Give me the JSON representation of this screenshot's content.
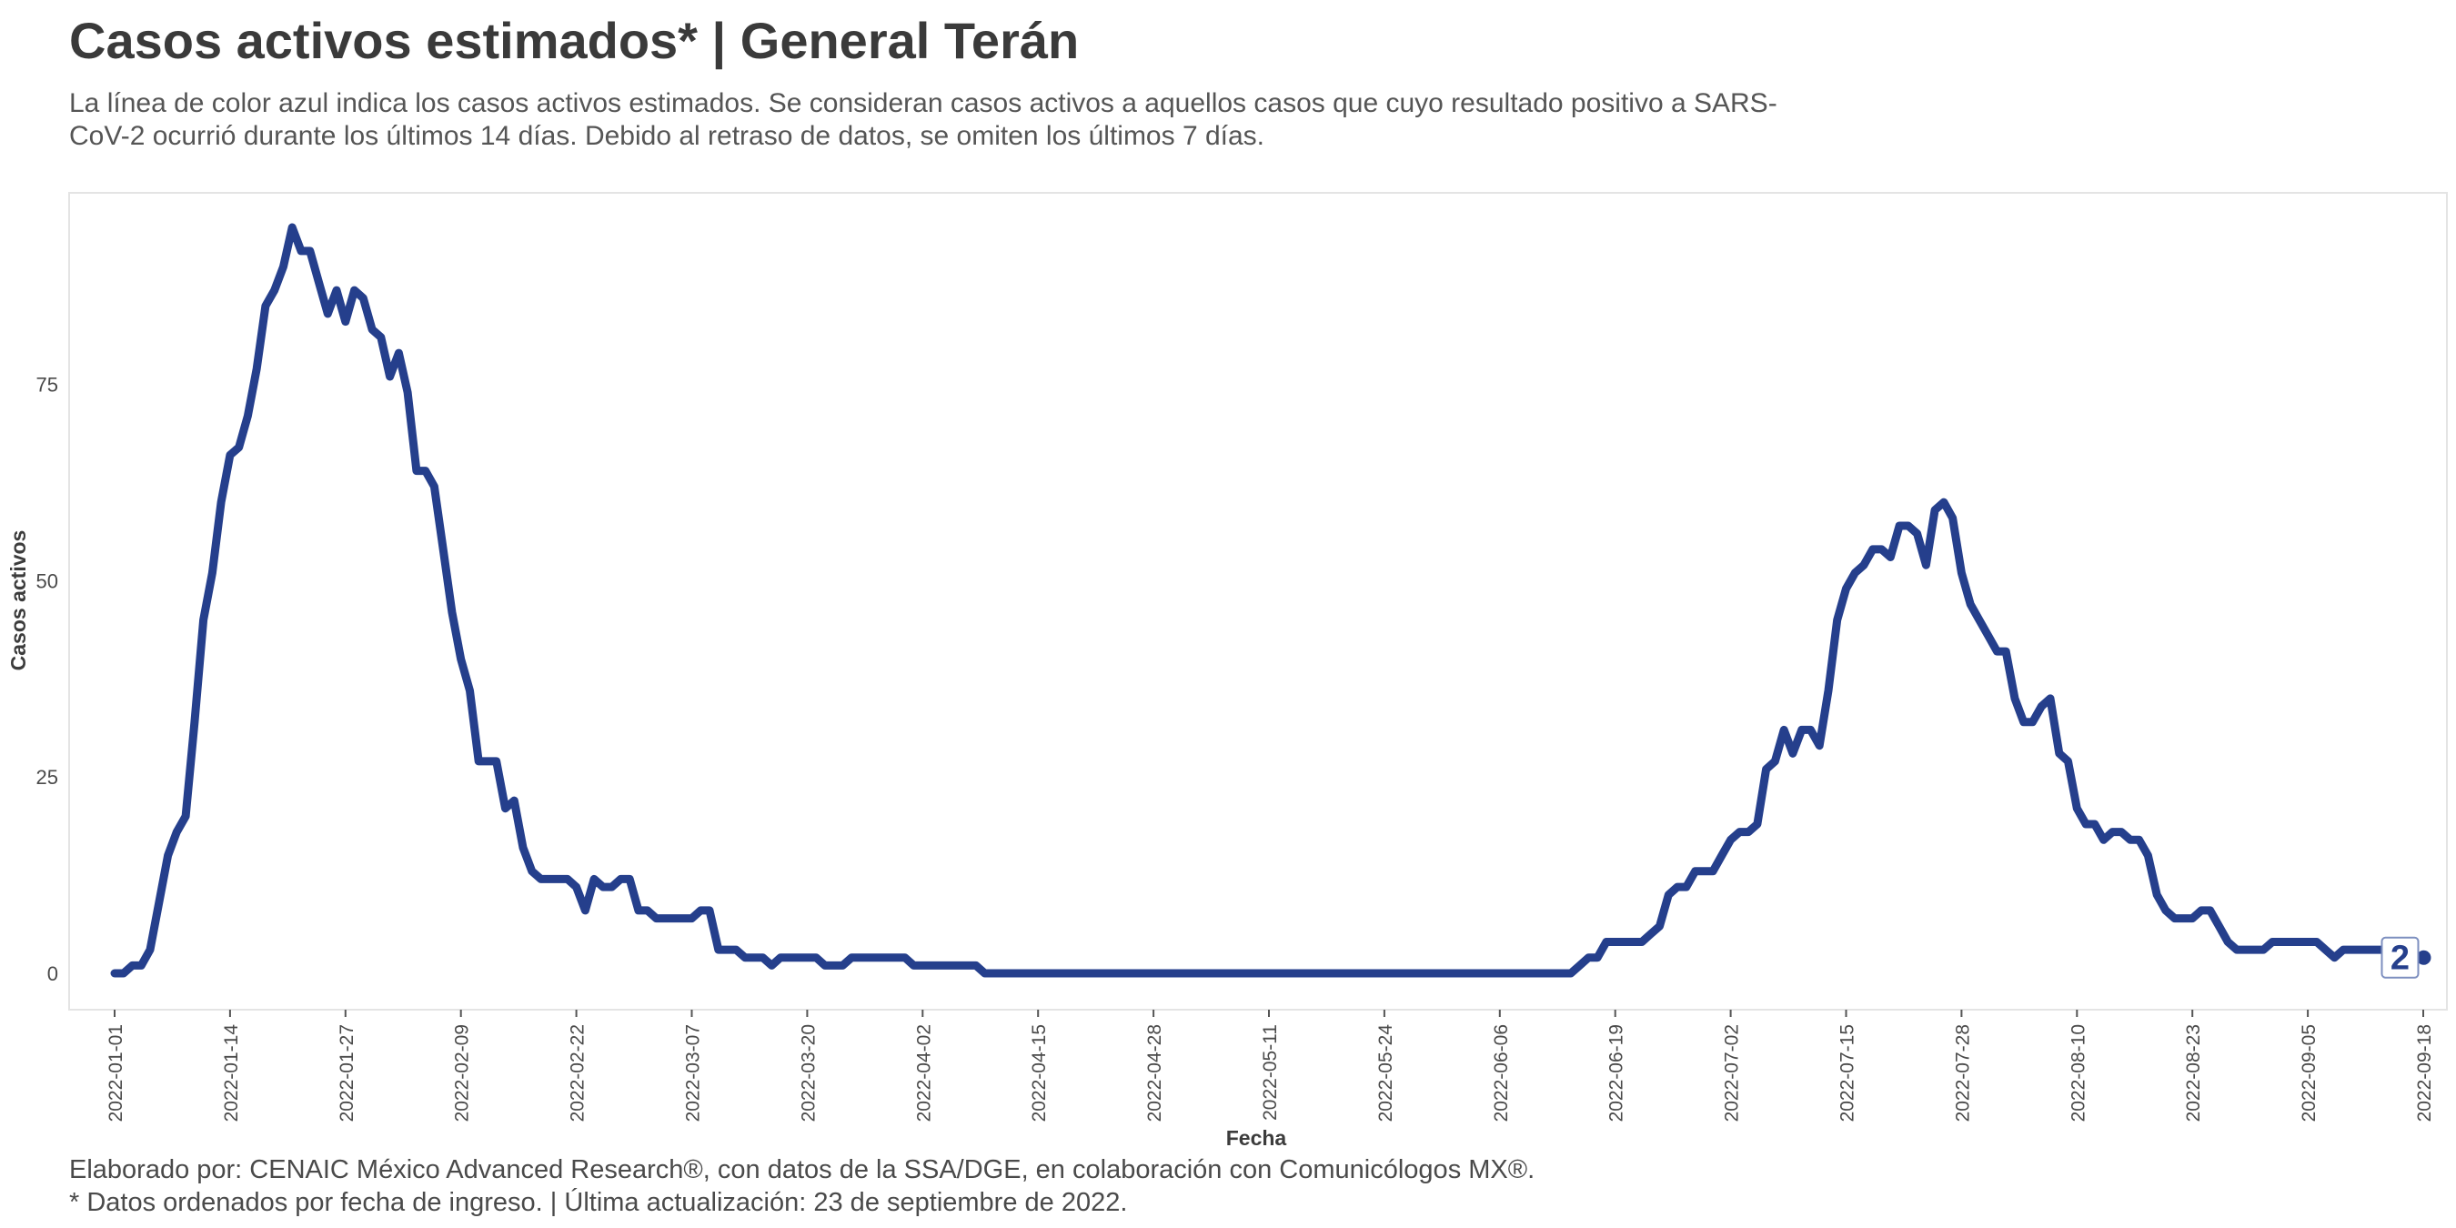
{
  "title": "Casos activos estimados* | General Terán",
  "subtitle": "La línea de color azul indica los casos activos estimados. Se consideran casos activos a aquellos casos que cuyo resultado positivo a SARS-CoV-2 ocurrió durante los últimos 14 días. Debido al retraso de datos, se omiten los últimos 7 días.",
  "caption_line1": "Elaborado por: CENAIC México Advanced Research®, con datos de la SSA/DGE, en colaboración con Comunicólogos MX®.",
  "caption_line2": "* Datos ordenados por fecha de ingreso. | Última actualización: 23 de septiembre de 2022.",
  "chart_data": {
    "type": "line",
    "xlabel": "Fecha",
    "ylabel": "Casos activos",
    "x_range": [
      "2022-01-01",
      "2022-09-18"
    ],
    "ylim": [
      0,
      95
    ],
    "y_ticks": [
      0,
      25,
      50,
      75
    ],
    "x_ticks": [
      "2022-01-01",
      "2022-01-14",
      "2022-01-27",
      "2022-02-09",
      "2022-02-22",
      "2022-03-07",
      "2022-03-20",
      "2022-04-02",
      "2022-04-15",
      "2022-04-28",
      "2022-05-11",
      "2022-05-24",
      "2022-06-06",
      "2022-06-19",
      "2022-07-02",
      "2022-07-15",
      "2022-07-28",
      "2022-08-10",
      "2022-08-23",
      "2022-09-05",
      "2022-09-18"
    ],
    "grid": false,
    "line_color": "#253f8c",
    "end_label": "2",
    "series": [
      {
        "points": [
          [
            "2022-01-01",
            0
          ],
          [
            "2022-01-02",
            0
          ],
          [
            "2022-01-03",
            1
          ],
          [
            "2022-01-04",
            1
          ],
          [
            "2022-01-05",
            3
          ],
          [
            "2022-01-06",
            9
          ],
          [
            "2022-01-07",
            15
          ],
          [
            "2022-01-08",
            18
          ],
          [
            "2022-01-09",
            20
          ],
          [
            "2022-01-10",
            32
          ],
          [
            "2022-01-11",
            45
          ],
          [
            "2022-01-12",
            51
          ],
          [
            "2022-01-13",
            60
          ],
          [
            "2022-01-14",
            66
          ],
          [
            "2022-01-15",
            67
          ],
          [
            "2022-01-16",
            71
          ],
          [
            "2022-01-17",
            77
          ],
          [
            "2022-01-18",
            85
          ],
          [
            "2022-01-19",
            87
          ],
          [
            "2022-01-20",
            90
          ],
          [
            "2022-01-21",
            95
          ],
          [
            "2022-01-22",
            92
          ],
          [
            "2022-01-23",
            92
          ],
          [
            "2022-01-24",
            88
          ],
          [
            "2022-01-25",
            84
          ],
          [
            "2022-01-26",
            87
          ],
          [
            "2022-01-27",
            83
          ],
          [
            "2022-01-28",
            87
          ],
          [
            "2022-01-29",
            86
          ],
          [
            "2022-01-30",
            82
          ],
          [
            "2022-01-31",
            81
          ],
          [
            "2022-02-01",
            76
          ],
          [
            "2022-02-02",
            79
          ],
          [
            "2022-02-03",
            74
          ],
          [
            "2022-02-04",
            64
          ],
          [
            "2022-02-05",
            64
          ],
          [
            "2022-02-06",
            62
          ],
          [
            "2022-02-07",
            54
          ],
          [
            "2022-02-08",
            46
          ],
          [
            "2022-02-09",
            40
          ],
          [
            "2022-02-10",
            36
          ],
          [
            "2022-02-11",
            27
          ],
          [
            "2022-02-12",
            27
          ],
          [
            "2022-02-13",
            27
          ],
          [
            "2022-02-14",
            21
          ],
          [
            "2022-02-15",
            22
          ],
          [
            "2022-02-16",
            16
          ],
          [
            "2022-02-17",
            13
          ],
          [
            "2022-02-18",
            12
          ],
          [
            "2022-02-19",
            12
          ],
          [
            "2022-02-20",
            12
          ],
          [
            "2022-02-21",
            12
          ],
          [
            "2022-02-22",
            11
          ],
          [
            "2022-02-23",
            8
          ],
          [
            "2022-02-24",
            12
          ],
          [
            "2022-02-25",
            11
          ],
          [
            "2022-02-26",
            11
          ],
          [
            "2022-02-27",
            12
          ],
          [
            "2022-02-28",
            12
          ],
          [
            "2022-03-01",
            8
          ],
          [
            "2022-03-02",
            8
          ],
          [
            "2022-03-03",
            7
          ],
          [
            "2022-03-04",
            7
          ],
          [
            "2022-03-05",
            7
          ],
          [
            "2022-03-06",
            7
          ],
          [
            "2022-03-07",
            7
          ],
          [
            "2022-03-08",
            8
          ],
          [
            "2022-03-09",
            8
          ],
          [
            "2022-03-10",
            3
          ],
          [
            "2022-03-11",
            3
          ],
          [
            "2022-03-12",
            3
          ],
          [
            "2022-03-13",
            2
          ],
          [
            "2022-03-14",
            2
          ],
          [
            "2022-03-15",
            2
          ],
          [
            "2022-03-16",
            1
          ],
          [
            "2022-03-17",
            2
          ],
          [
            "2022-03-18",
            2
          ],
          [
            "2022-03-19",
            2
          ],
          [
            "2022-03-20",
            2
          ],
          [
            "2022-03-21",
            2
          ],
          [
            "2022-03-22",
            1
          ],
          [
            "2022-03-23",
            1
          ],
          [
            "2022-03-24",
            1
          ],
          [
            "2022-03-25",
            2
          ],
          [
            "2022-03-26",
            2
          ],
          [
            "2022-03-27",
            2
          ],
          [
            "2022-03-28",
            2
          ],
          [
            "2022-03-29",
            2
          ],
          [
            "2022-03-30",
            2
          ],
          [
            "2022-03-31",
            2
          ],
          [
            "2022-04-01",
            1
          ],
          [
            "2022-04-02",
            1
          ],
          [
            "2022-04-05",
            1
          ],
          [
            "2022-04-08",
            1
          ],
          [
            "2022-04-09",
            0
          ],
          [
            "2022-04-15",
            0
          ],
          [
            "2022-05-01",
            0
          ],
          [
            "2022-05-15",
            0
          ],
          [
            "2022-06-01",
            0
          ],
          [
            "2022-06-13",
            0
          ],
          [
            "2022-06-14",
            0
          ],
          [
            "2022-06-15",
            1
          ],
          [
            "2022-06-16",
            2
          ],
          [
            "2022-06-17",
            2
          ],
          [
            "2022-06-18",
            4
          ],
          [
            "2022-06-19",
            4
          ],
          [
            "2022-06-20",
            4
          ],
          [
            "2022-06-21",
            4
          ],
          [
            "2022-06-22",
            4
          ],
          [
            "2022-06-23",
            5
          ],
          [
            "2022-06-24",
            6
          ],
          [
            "2022-06-25",
            10
          ],
          [
            "2022-06-26",
            11
          ],
          [
            "2022-06-27",
            11
          ],
          [
            "2022-06-28",
            13
          ],
          [
            "2022-06-29",
            13
          ],
          [
            "2022-06-30",
            13
          ],
          [
            "2022-07-01",
            15
          ],
          [
            "2022-07-02",
            17
          ],
          [
            "2022-07-03",
            18
          ],
          [
            "2022-07-04",
            18
          ],
          [
            "2022-07-05",
            19
          ],
          [
            "2022-07-06",
            26
          ],
          [
            "2022-07-07",
            27
          ],
          [
            "2022-07-08",
            31
          ],
          [
            "2022-07-09",
            28
          ],
          [
            "2022-07-10",
            31
          ],
          [
            "2022-07-11",
            31
          ],
          [
            "2022-07-12",
            29
          ],
          [
            "2022-07-13",
            36
          ],
          [
            "2022-07-14",
            45
          ],
          [
            "2022-07-15",
            49
          ],
          [
            "2022-07-16",
            51
          ],
          [
            "2022-07-17",
            52
          ],
          [
            "2022-07-18",
            54
          ],
          [
            "2022-07-19",
            54
          ],
          [
            "2022-07-20",
            53
          ],
          [
            "2022-07-21",
            57
          ],
          [
            "2022-07-22",
            57
          ],
          [
            "2022-07-23",
            56
          ],
          [
            "2022-07-24",
            52
          ],
          [
            "2022-07-25",
            59
          ],
          [
            "2022-07-26",
            60
          ],
          [
            "2022-07-27",
            58
          ],
          [
            "2022-07-28",
            51
          ],
          [
            "2022-07-29",
            47
          ],
          [
            "2022-07-30",
            45
          ],
          [
            "2022-07-31",
            43
          ],
          [
            "2022-08-01",
            41
          ],
          [
            "2022-08-02",
            41
          ],
          [
            "2022-08-03",
            35
          ],
          [
            "2022-08-04",
            32
          ],
          [
            "2022-08-05",
            32
          ],
          [
            "2022-08-06",
            34
          ],
          [
            "2022-08-07",
            35
          ],
          [
            "2022-08-08",
            28
          ],
          [
            "2022-08-09",
            27
          ],
          [
            "2022-08-10",
            21
          ],
          [
            "2022-08-11",
            19
          ],
          [
            "2022-08-12",
            19
          ],
          [
            "2022-08-13",
            17
          ],
          [
            "2022-08-14",
            18
          ],
          [
            "2022-08-15",
            18
          ],
          [
            "2022-08-16",
            17
          ],
          [
            "2022-08-17",
            17
          ],
          [
            "2022-08-18",
            15
          ],
          [
            "2022-08-19",
            10
          ],
          [
            "2022-08-20",
            8
          ],
          [
            "2022-08-21",
            7
          ],
          [
            "2022-08-22",
            7
          ],
          [
            "2022-08-23",
            7
          ],
          [
            "2022-08-24",
            8
          ],
          [
            "2022-08-25",
            8
          ],
          [
            "2022-08-26",
            6
          ],
          [
            "2022-08-27",
            4
          ],
          [
            "2022-08-28",
            3
          ],
          [
            "2022-08-29",
            3
          ],
          [
            "2022-08-30",
            3
          ],
          [
            "2022-08-31",
            3
          ],
          [
            "2022-09-01",
            4
          ],
          [
            "2022-09-02",
            4
          ],
          [
            "2022-09-03",
            4
          ],
          [
            "2022-09-04",
            4
          ],
          [
            "2022-09-05",
            4
          ],
          [
            "2022-09-06",
            4
          ],
          [
            "2022-09-07",
            3
          ],
          [
            "2022-09-08",
            2
          ],
          [
            "2022-09-09",
            3
          ],
          [
            "2022-09-10",
            3
          ],
          [
            "2022-09-11",
            3
          ],
          [
            "2022-09-12",
            3
          ],
          [
            "2022-09-13",
            3
          ],
          [
            "2022-09-14",
            3
          ],
          [
            "2022-09-15",
            3
          ],
          [
            "2022-09-16",
            2
          ]
        ]
      }
    ]
  }
}
